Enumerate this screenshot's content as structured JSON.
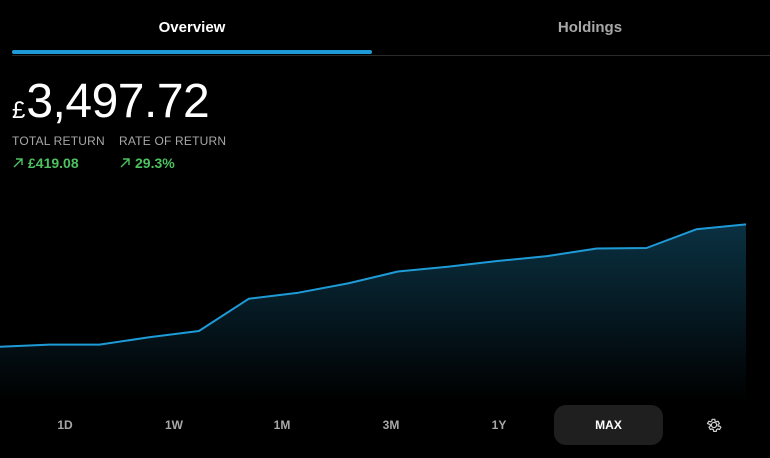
{
  "tabs": [
    {
      "label": "Overview",
      "active": true
    },
    {
      "label": "Holdings",
      "active": false
    }
  ],
  "balance": {
    "currency": "£",
    "amount": "3,497.72"
  },
  "stats": {
    "total_return": {
      "label": "TOTAL RETURN",
      "value": "£419.08",
      "icon": "arrow-up-right-icon"
    },
    "rate_of_return": {
      "label": "RATE OF RETURN",
      "value": "29.3%",
      "icon": "arrow-up-right-icon"
    }
  },
  "colors": {
    "accent": "#1e9bd7",
    "positive": "#4cc25f",
    "chart_fill_top": "#0b3345"
  },
  "chart_data": {
    "type": "area",
    "values": [
      3078,
      3087,
      3087,
      3117,
      3143,
      3275,
      3300,
      3338,
      3387,
      3406,
      3430,
      3450,
      3481,
      3483,
      3560,
      3580
    ],
    "ylim": [
      2860,
      3680
    ]
  },
  "ranges": [
    {
      "label": "1D",
      "active": false
    },
    {
      "label": "1W",
      "active": false
    },
    {
      "label": "1M",
      "active": false
    },
    {
      "label": "3M",
      "active": false
    },
    {
      "label": "1Y",
      "active": false
    },
    {
      "label": "MAX",
      "active": true
    }
  ],
  "settings_icon": "gear-icon"
}
